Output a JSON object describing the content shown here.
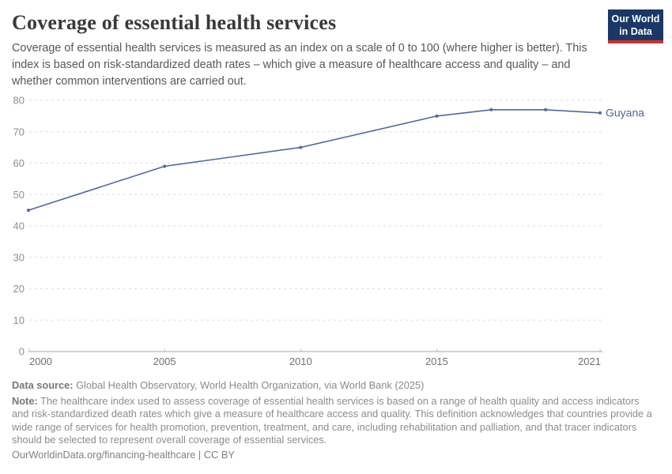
{
  "header": {
    "title": "Coverage of essential health services",
    "subtitle": "Coverage of essential health services is measured as an index on a scale of 0 to 100 (where higher is better). This index is based on risk-standardized death rates – which give a measure of healthcare access and quality – and whether common interventions are carried out.",
    "logo": {
      "line1": "Our World",
      "line2": "in Data",
      "bg_color": "#1a3866",
      "accent_color": "#c9342c"
    }
  },
  "chart_data": {
    "type": "line",
    "title": "Coverage of essential health services",
    "xlabel": "",
    "ylabel": "",
    "x": [
      2000,
      2005,
      2010,
      2015,
      2017,
      2019,
      2021
    ],
    "series": [
      {
        "name": "Guyana",
        "values": [
          45,
          59,
          65,
          75,
          77,
          77,
          76
        ],
        "color": "#4C6A9C"
      }
    ],
    "xlim": [
      2000,
      2021
    ],
    "ylim": [
      0,
      80
    ],
    "x_ticks": [
      2000,
      2005,
      2010,
      2015,
      2021
    ],
    "y_ticks": [
      0,
      10,
      20,
      30,
      40,
      50,
      60,
      70,
      80
    ],
    "grid": "dashed-horizontal",
    "legend_position": "end-of-line-label",
    "colors": {
      "line": "#4C6A9C",
      "gridline": "#dedede",
      "axis_line": "#a3a3a3",
      "tick_mark": "#c2c2c2",
      "y_tick_label": "#8e8e8e",
      "x_tick_label": "#707070"
    }
  },
  "footer": {
    "data_source_label": "Data source:",
    "data_source_text": " Global Health Observatory, World Health Organization, via World Bank (2025)",
    "note_label": "Note:",
    "note_text": " The healthcare index used to assess coverage of essential health services is based on a range of health quality and access indicators and risk-standardized death rates which give a measure of healthcare access and quality. This definition acknowledges that countries provide a wide range of services for health promotion, prevention, treatment, and care, including rehabilitation and palliation, and that tracer indicators should be selected to represent overall coverage of essential services.",
    "license_line": "OurWorldinData.org/financing-healthcare | CC BY"
  }
}
